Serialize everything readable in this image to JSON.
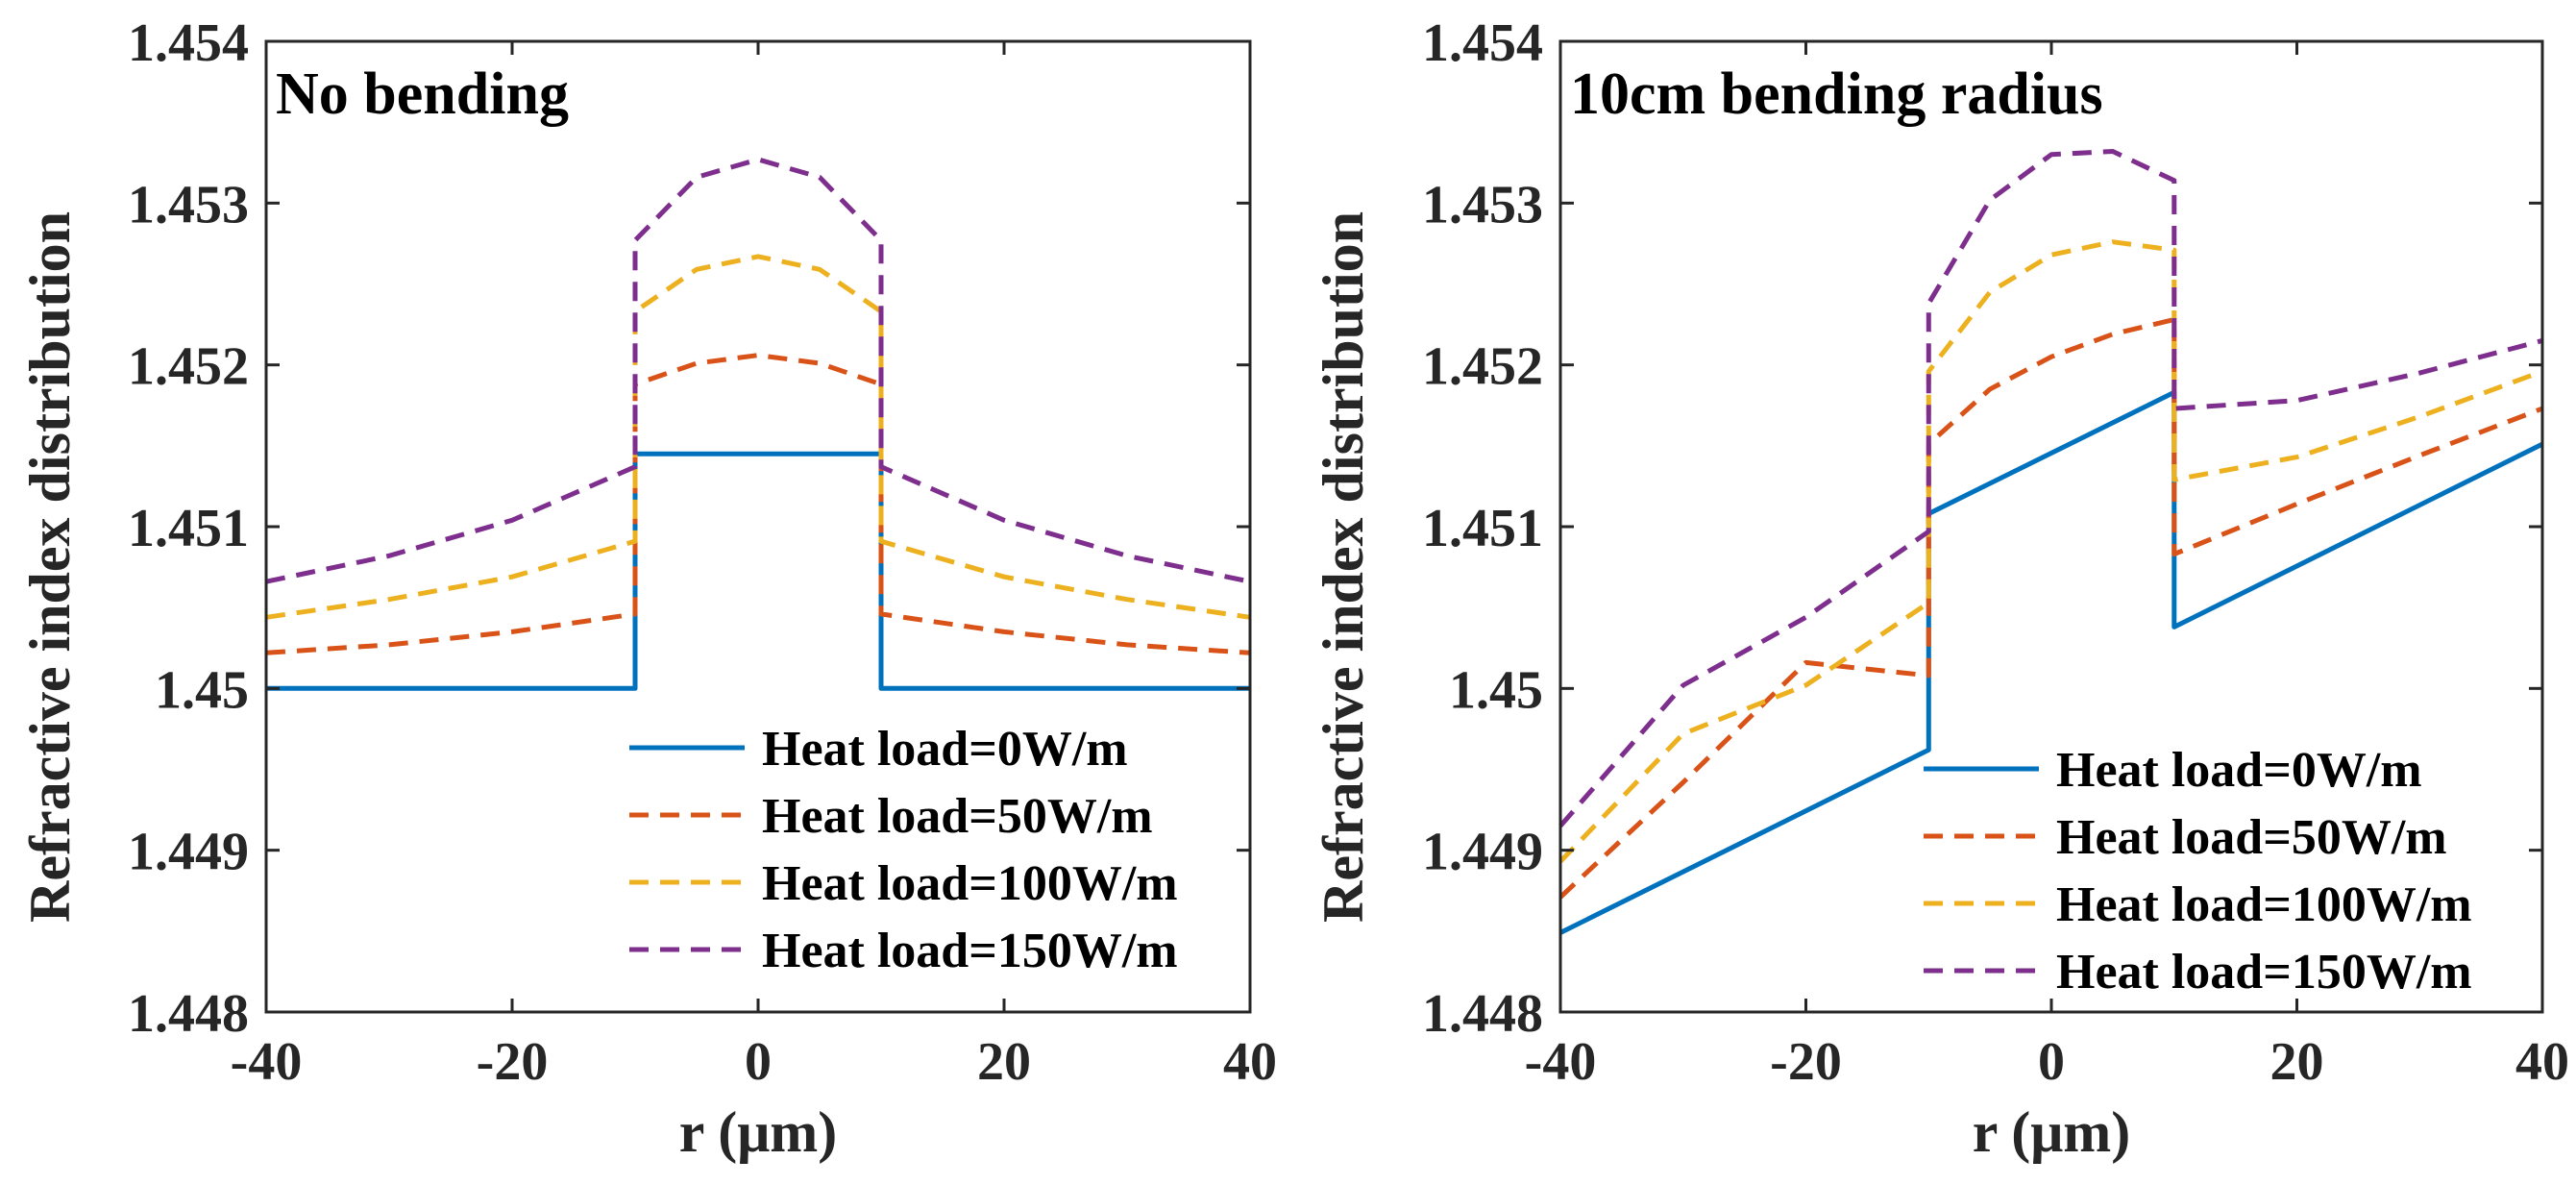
{
  "chart_data": [
    {
      "type": "line",
      "title": "No bending",
      "xlabel": "r (μm)",
      "ylabel": "Refractive index distribution",
      "xlim": [
        -40,
        40
      ],
      "ylim": [
        1.448,
        1.454
      ],
      "xticks": [
        -40,
        -20,
        0,
        20,
        40
      ],
      "yticks": [
        1.448,
        1.449,
        1.45,
        1.451,
        1.452,
        1.453,
        1.454
      ],
      "xtick_labels": [
        "-40",
        "-20",
        "0",
        "20",
        "40"
      ],
      "ytick_labels": [
        "1.448",
        "1.449",
        "1.45",
        "1.451",
        "1.452",
        "1.453",
        "1.454"
      ],
      "legend_position": "bottom-right",
      "series": [
        {
          "name": "Heat load=0W/m",
          "color": "#0072bd",
          "dash": "solid",
          "x": [
            -40,
            -10,
            -10,
            0,
            10,
            10,
            40
          ],
          "y": [
            1.45,
            1.45,
            1.45145,
            1.45145,
            1.45145,
            1.45,
            1.45
          ]
        },
        {
          "name": "Heat load=50W/m",
          "color": "#d95319",
          "dash": "dashed",
          "x": [
            -40,
            -30,
            -20,
            -10,
            -10,
            -5,
            0,
            5,
            10,
            10,
            20,
            30,
            40
          ],
          "y": [
            1.45022,
            1.45027,
            1.45035,
            1.45046,
            1.45188,
            1.45201,
            1.45206,
            1.45201,
            1.45188,
            1.45046,
            1.45035,
            1.45027,
            1.45022
          ]
        },
        {
          "name": "Heat load=100W/m",
          "color": "#edb120",
          "dash": "dashed",
          "x": [
            -40,
            -30,
            -20,
            -10,
            -10,
            -5,
            0,
            5,
            10,
            10,
            20,
            30,
            40
          ],
          "y": [
            1.45044,
            1.45055,
            1.45069,
            1.45091,
            1.45233,
            1.45259,
            1.45267,
            1.45259,
            1.45233,
            1.45091,
            1.45069,
            1.45055,
            1.45044
          ]
        },
        {
          "name": "Heat load=150W/m",
          "color": "#7e2f8e",
          "dash": "dashed",
          "x": [
            -40,
            -30,
            -20,
            -10,
            -10,
            -5,
            0,
            5,
            10,
            10,
            20,
            30,
            40
          ],
          "y": [
            1.45066,
            1.45082,
            1.45104,
            1.45137,
            1.45277,
            1.45316,
            1.45327,
            1.45316,
            1.45277,
            1.45137,
            1.45104,
            1.45082,
            1.45066
          ]
        }
      ]
    },
    {
      "type": "line",
      "title": "10cm bending radius",
      "xlabel": "r (μm)",
      "ylabel": "Refractive index distribution",
      "xlim": [
        -40,
        40
      ],
      "ylim": [
        1.448,
        1.454
      ],
      "xticks": [
        -40,
        -20,
        0,
        20,
        40
      ],
      "yticks": [
        1.448,
        1.449,
        1.45,
        1.451,
        1.452,
        1.453,
        1.454
      ],
      "xtick_labels": [
        "-40",
        "-20",
        "0",
        "20",
        "40"
      ],
      "ytick_labels": [
        "1.448",
        "1.449",
        "1.45",
        "1.451",
        "1.452",
        "1.453",
        "1.454"
      ],
      "legend_position": "bottom-right",
      "series": [
        {
          "name": "Heat load=0W/m",
          "color": "#0072bd",
          "dash": "solid",
          "x": [
            -40,
            -10,
            -10,
            10,
            10,
            40
          ],
          "y": [
            1.44849,
            1.44962,
            1.45108,
            1.45183,
            1.45038,
            1.45151
          ]
        },
        {
          "name": "Heat load=50W/m",
          "color": "#d95319",
          "dash": "dashed",
          "x": [
            -40,
            -30,
            -20,
            -10,
            -10,
            -5,
            0,
            5,
            10,
            10,
            20,
            30,
            40
          ],
          "y": [
            1.44871,
            1.44942,
            1.45016,
            1.45008,
            1.45151,
            1.45185,
            1.45205,
            1.45219,
            1.45228,
            1.45083,
            1.45114,
            1.45144,
            1.45173
          ]
        },
        {
          "name": "Heat load=100W/m",
          "color": "#edb120",
          "dash": "dashed",
          "x": [
            -40,
            -30,
            -20,
            -10,
            -10,
            -5,
            0,
            5,
            10,
            10,
            20,
            30,
            40
          ],
          "y": [
            1.44893,
            1.44972,
            1.45002,
            1.45053,
            1.45196,
            1.45245,
            1.45268,
            1.45276,
            1.45271,
            1.45129,
            1.45143,
            1.45168,
            1.45196
          ]
        },
        {
          "name": "Heat load=150W/m",
          "color": "#7e2f8e",
          "dash": "dashed",
          "x": [
            -40,
            -30,
            -20,
            -10,
            -10,
            -5,
            0,
            5,
            10,
            10,
            20,
            30,
            40
          ],
          "y": [
            1.44915,
            1.45002,
            1.45044,
            1.45097,
            1.45238,
            1.45302,
            1.4533,
            1.45332,
            1.45314,
            1.45173,
            1.45178,
            1.45195,
            1.45215
          ]
        }
      ]
    }
  ]
}
